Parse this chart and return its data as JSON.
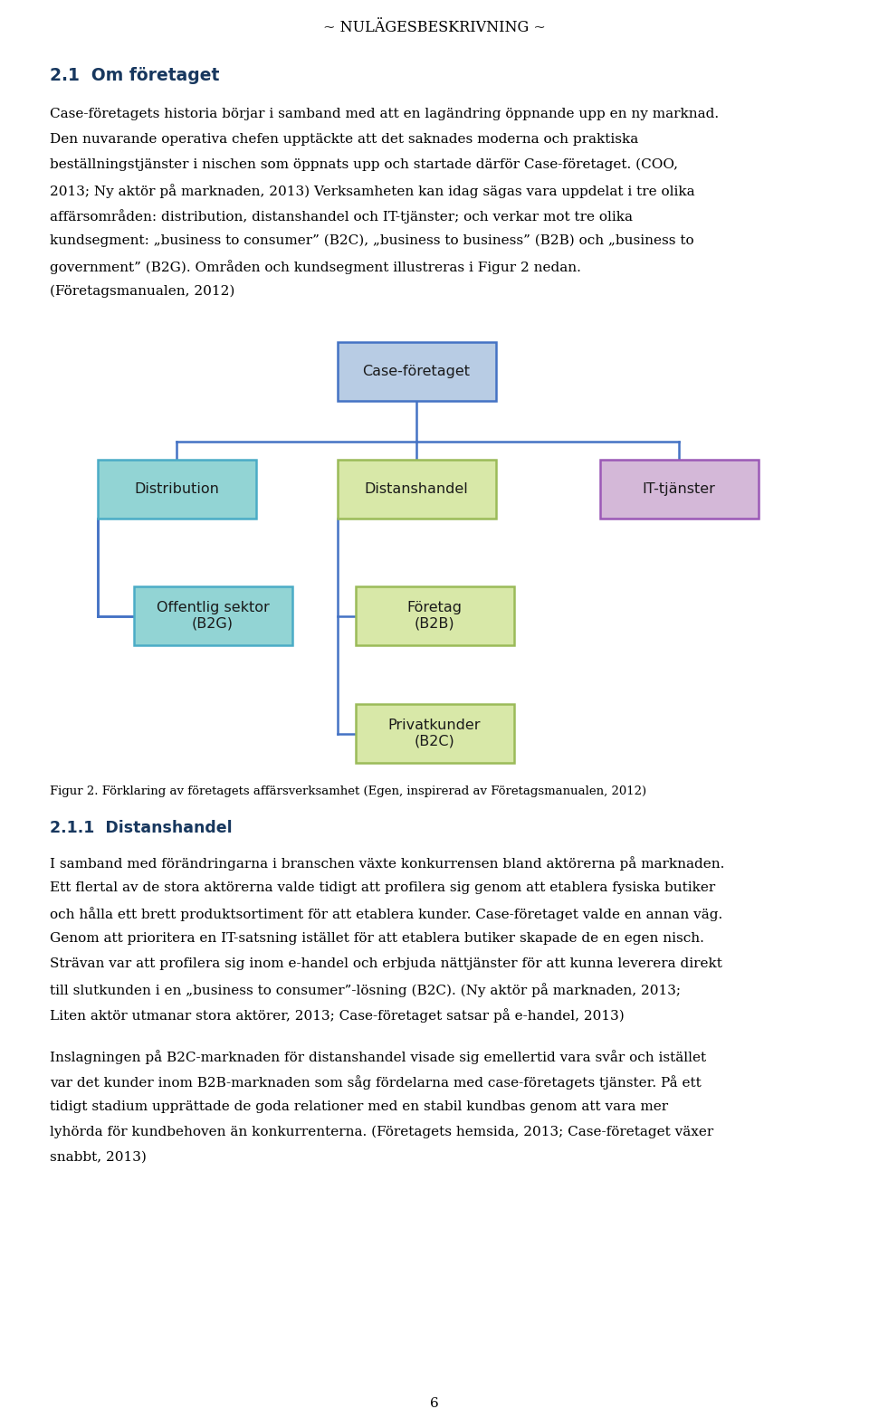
{
  "page_title": "~ NULÄGESBESKRIVNING ~",
  "section_title": "2.1  Om företaget",
  "para1_lines": [
    "Case-företagets historia börjar i samband med att en lagändring öppnande upp en ny marknad.",
    "Den nuvarande operativa chefen upptäckte att det saknades moderna och praktiska",
    "beställningstjänster i nischen som öppnats upp och startade därför Case-företaget. (COO,",
    "2013; Ny aktör på marknaden, 2013) Verksamheten kan idag sägas vara uppdelat i tre olika",
    "affärsområden: distribution, distanshandel och IT-tjänster; och verkar mot tre olika",
    "kundsegment: „business to consumer” (B2C), „business to business” (B2B) och „business to",
    "government” (B2G). Områden och kundsegment illustreras i Figur 2 nedan.",
    "(Företagsmanualen, 2012)"
  ],
  "diagram": {
    "root": {
      "label": "Case-företaget",
      "color": "#b8cce4",
      "border": "#4472c4"
    },
    "level2": [
      {
        "label": "Distribution",
        "color": "#92d4d4",
        "border": "#4bacc6"
      },
      {
        "label": "Distanshandel",
        "color": "#d8e8a8",
        "border": "#9bbb59"
      },
      {
        "label": "IT-tjänster",
        "color": "#d4b8d8",
        "border": "#9b59b6"
      }
    ],
    "level3_left": {
      "label": "Offentlig sektor\n(B2G)",
      "color": "#92d4d4",
      "border": "#4bacc6"
    },
    "level3_mid": {
      "label": "Företag\n(B2B)",
      "color": "#d8e8a8",
      "border": "#9bbb59"
    },
    "level4_mid": {
      "label": "Privatkunder\n(B2C)",
      "color": "#d8e8a8",
      "border": "#9bbb59"
    }
  },
  "fig_caption": "Figur 2. Förklaring av företagets affärsverksamhet (Egen, inspirerad av Företagsmanualen, 2012)",
  "subsection_title": "2.1.1  Distanshandel",
  "para2_lines": [
    "I samband med förändringarna i branschen växte konkurrensen bland aktörerna på marknaden.",
    "Ett flertal av de stora aktörerna valde tidigt att profilera sig genom att etablera fysiska butiker",
    "och hålla ett brett produktsortiment för att etablera kunder. Case-företaget valde en annan väg.",
    "Genom att prioritera en IT-satsning istället för att etablera butiker skapade de en egen nisch.",
    "Strävan var att profilera sig inom e-handel och erbjuda nättjänster för att kunna leverera direkt",
    "till slutkunden i en „business to consumer”-lösning (B2C). (Ny aktör på marknaden, 2013;",
    "Liten aktör utmanar stora aktörer, 2013; Case-företaget satsar på e-handel, 2013)"
  ],
  "para3_lines": [
    "Inslagningen på B2C-marknaden för distanshandel visade sig emellertid vara svår och istället",
    "var det kunder inom B2B-marknaden som såg fördelarna med case-företagets tjänster. På ett",
    "tidigt stadium upprättade de goda relationer med en stabil kundbas genom att vara mer",
    "lyhörda för kundbehoven än konkurrenterna. (Företagets hemsida, 2013; Case-företaget växer",
    "snabbt, 2013)"
  ],
  "page_number": "6",
  "bg_color": "#ffffff",
  "text_color": "#000000",
  "heading_color": "#17375e",
  "line_color": "#4472c4"
}
